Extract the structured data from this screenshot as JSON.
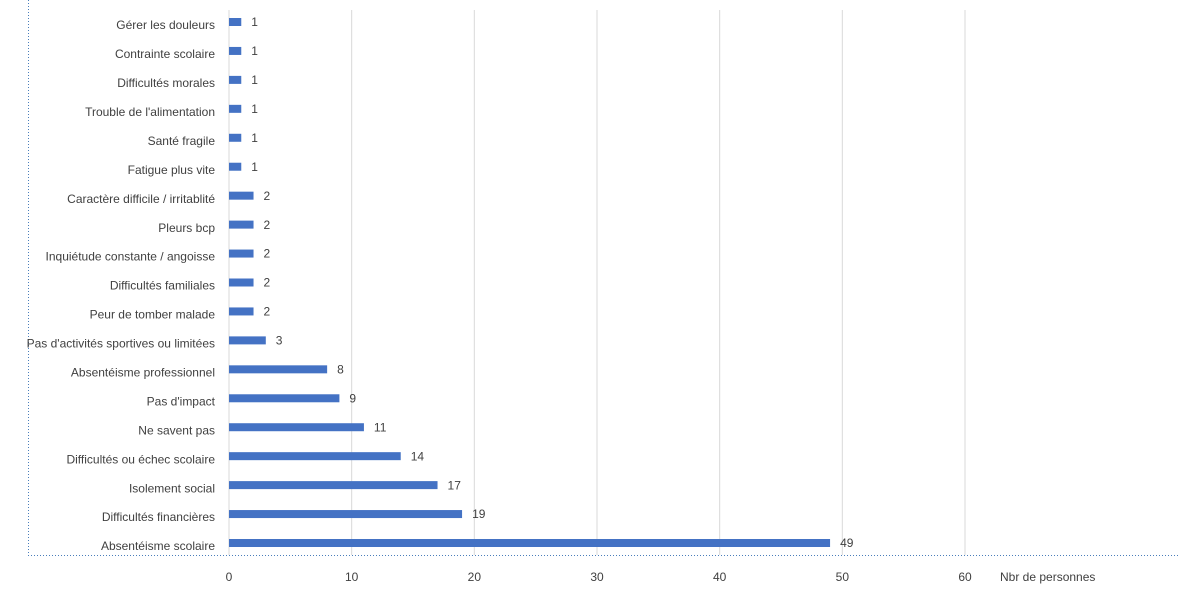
{
  "chart_data": {
    "type": "hbar",
    "categories": [
      "Gérer les douleurs",
      "Contrainte scolaire",
      "Difficultés morales",
      "Trouble de l'alimentation",
      "Santé fragile",
      "Fatigue plus vite",
      "Caractère difficile / irritablité",
      "Pleurs bcp",
      "Inquiétude constante / angoisse",
      "Difficultés familiales",
      "Peur de tomber malade",
      "Pas d'activités sportives ou limitées",
      "Absentéisme professionnel",
      "Pas d'impact",
      "Ne savent pas",
      "Difficultés ou échec scolaire",
      "Isolement social",
      "Difficultés financières",
      "Absentéisme scolaire"
    ],
    "values": [
      1,
      1,
      1,
      1,
      1,
      1,
      2,
      2,
      2,
      2,
      2,
      3,
      8,
      9,
      11,
      14,
      17,
      19,
      49
    ],
    "color": "#4472c4",
    "xlim": [
      0,
      60
    ],
    "xticks": [
      0,
      10,
      20,
      30,
      40,
      50,
      60
    ],
    "x_label": "Nbr de personnes",
    "grid": true
  }
}
